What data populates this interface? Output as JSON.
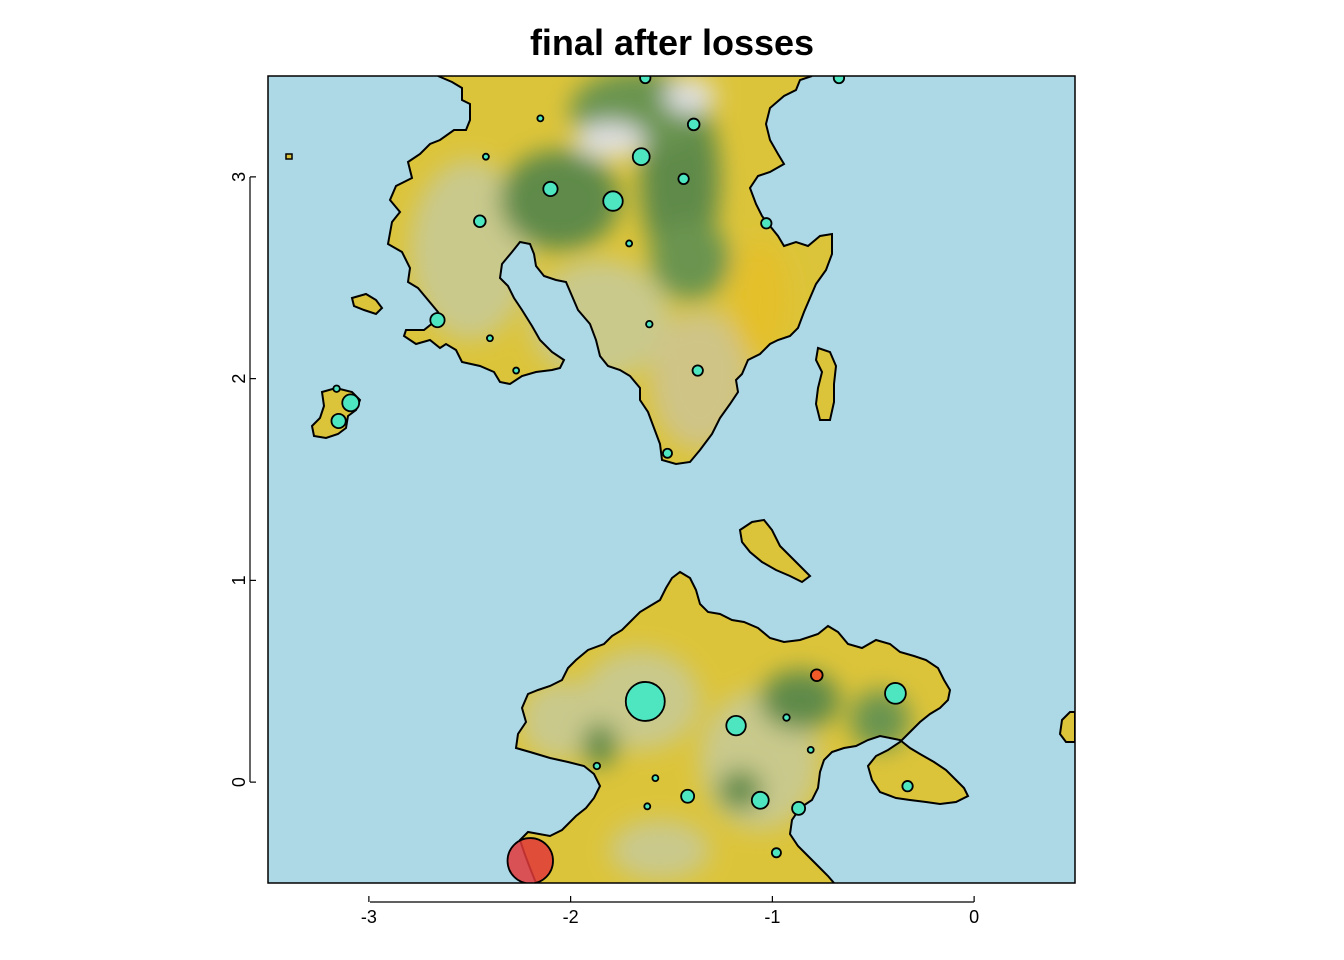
{
  "chart_data": {
    "type": "scatter",
    "title": "final after losses",
    "xlabel": "",
    "ylabel": "",
    "xlim": [
      -3.5,
      0.5
    ],
    "ylim": [
      -0.5,
      3.5
    ],
    "xticks": [
      -3,
      -2,
      -1,
      0
    ],
    "yticks": [
      0,
      1,
      2,
      3
    ],
    "xtick_labels": [
      "-3",
      "-2",
      "-1",
      "0"
    ],
    "ytick_labels": [
      "0",
      "1",
      "2",
      "3"
    ],
    "background_color": "#add8e6",
    "land_colors": [
      "#e6c41e",
      "#d9c45a",
      "#c8c98e",
      "#5f8a4a",
      "#d8d8d8"
    ],
    "coastline_color": "#000000",
    "point_colors": {
      "teal": "#4ee6c0",
      "red": "#e03a3a",
      "orange": "#f05a28"
    },
    "points": [
      {
        "x": -1.63,
        "y": 0.4,
        "size": 3.0,
        "color": "teal"
      },
      {
        "x": -1.18,
        "y": 0.28,
        "size": 1.5,
        "color": "teal"
      },
      {
        "x": -0.39,
        "y": 0.44,
        "size": 1.6,
        "color": "teal"
      },
      {
        "x": -0.78,
        "y": 0.53,
        "size": 0.9,
        "color": "orange"
      },
      {
        "x": -0.93,
        "y": 0.32,
        "size": 0.5,
        "color": "teal"
      },
      {
        "x": -1.42,
        "y": -0.07,
        "size": 1.0,
        "color": "teal"
      },
      {
        "x": -1.06,
        "y": -0.09,
        "size": 1.3,
        "color": "teal"
      },
      {
        "x": -0.87,
        "y": -0.13,
        "size": 1.0,
        "color": "teal"
      },
      {
        "x": -0.33,
        "y": -0.02,
        "size": 0.8,
        "color": "teal"
      },
      {
        "x": -1.87,
        "y": 0.08,
        "size": 0.5,
        "color": "teal"
      },
      {
        "x": -0.98,
        "y": -0.35,
        "size": 0.7,
        "color": "teal"
      },
      {
        "x": -2.2,
        "y": -0.39,
        "size": 3.5,
        "color": "red"
      },
      {
        "x": -1.65,
        "y": 3.1,
        "size": 1.3,
        "color": "teal"
      },
      {
        "x": -1.79,
        "y": 2.88,
        "size": 1.5,
        "color": "teal"
      },
      {
        "x": -2.1,
        "y": 2.94,
        "size": 1.1,
        "color": "teal"
      },
      {
        "x": -1.39,
        "y": 3.26,
        "size": 0.9,
        "color": "teal"
      },
      {
        "x": -1.44,
        "y": 2.99,
        "size": 0.8,
        "color": "teal"
      },
      {
        "x": -2.45,
        "y": 2.78,
        "size": 0.9,
        "color": "teal"
      },
      {
        "x": -1.03,
        "y": 2.77,
        "size": 0.8,
        "color": "teal"
      },
      {
        "x": -2.66,
        "y": 2.29,
        "size": 1.1,
        "color": "teal"
      },
      {
        "x": -1.37,
        "y": 2.04,
        "size": 0.8,
        "color": "teal"
      },
      {
        "x": -1.52,
        "y": 1.63,
        "size": 0.7,
        "color": "teal"
      },
      {
        "x": -1.63,
        "y": 3.49,
        "size": 0.8,
        "color": "teal"
      },
      {
        "x": -0.67,
        "y": 3.49,
        "size": 0.8,
        "color": "teal"
      },
      {
        "x": -3.09,
        "y": 1.88,
        "size": 1.3,
        "color": "teal"
      },
      {
        "x": -3.15,
        "y": 1.79,
        "size": 1.1,
        "color": "teal"
      },
      {
        "x": -3.16,
        "y": 1.95,
        "size": 0.5,
        "color": "teal"
      },
      {
        "x": -1.61,
        "y": 2.27,
        "size": 0.5,
        "color": "teal"
      },
      {
        "x": -1.71,
        "y": 2.67,
        "size": 0.4,
        "color": "teal"
      },
      {
        "x": -2.4,
        "y": 2.2,
        "size": 0.3,
        "color": "teal"
      },
      {
        "x": -2.42,
        "y": 3.1,
        "size": 0.3,
        "color": "teal"
      },
      {
        "x": -2.15,
        "y": 3.29,
        "size": 0.3,
        "color": "teal"
      },
      {
        "x": -1.58,
        "y": 0.02,
        "size": 0.3,
        "color": "teal"
      },
      {
        "x": -1.62,
        "y": -0.12,
        "size": 0.3,
        "color": "teal"
      },
      {
        "x": -0.81,
        "y": 0.16,
        "size": 0.3,
        "color": "teal"
      },
      {
        "x": -2.27,
        "y": 2.04,
        "size": 0.3,
        "color": "teal"
      }
    ]
  }
}
